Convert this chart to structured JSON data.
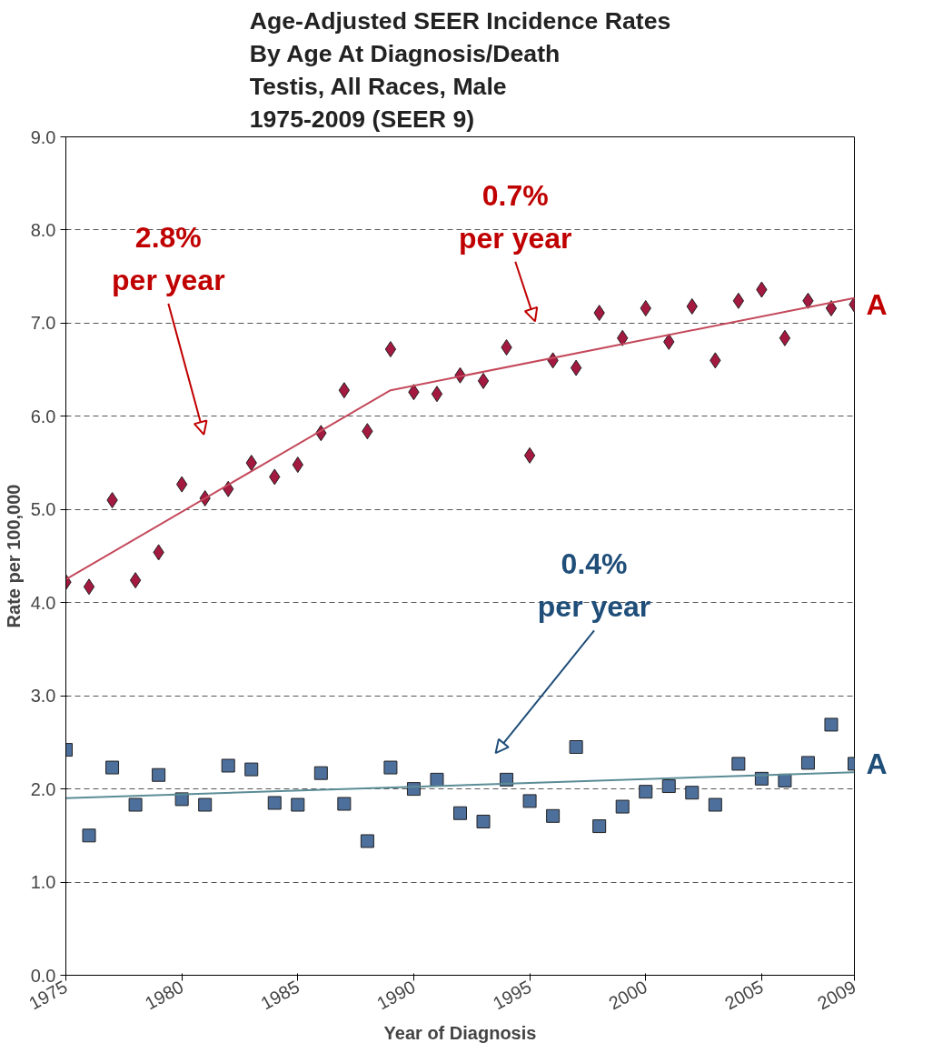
{
  "chart_data": {
    "type": "scatter",
    "title": "Age-Adjusted SEER Incidence Rates\nBy Age At Diagnosis/Death\nTestis, All Races, Male\n1975-2009  (SEER 9)",
    "xlabel": "Year of Diagnosis",
    "ylabel": "Rate per 100,000",
    "xlim": [
      1975,
      2009
    ],
    "xticks": [
      1975,
      1980,
      1985,
      1990,
      1995,
      2000,
      2005,
      2009
    ],
    "ylim": [
      0,
      9
    ],
    "yticks": [
      {
        "value": 0,
        "label": "0.0"
      },
      {
        "value": 1,
        "label": "1.0"
      },
      {
        "value": 2,
        "label": "2.0"
      },
      {
        "value": 3,
        "label": "3.0"
      },
      {
        "value": 4,
        "label": "4.0"
      },
      {
        "value": 5,
        "label": "5.0"
      },
      {
        "value": 6,
        "label": "6.0"
      },
      {
        "value": 7,
        "label": "7.0"
      },
      {
        "value": 8,
        "label": "8.0"
      },
      {
        "value": 9,
        "label": "9.0"
      }
    ],
    "grid": "y",
    "x": [
      1975,
      1976,
      1977,
      1978,
      1979,
      1980,
      1981,
      1982,
      1983,
      1984,
      1985,
      1986,
      1987,
      1988,
      1989,
      1990,
      1991,
      1992,
      1993,
      1994,
      1995,
      1996,
      1997,
      1998,
      1999,
      2000,
      2001,
      2002,
      2003,
      2004,
      2005,
      2006,
      2007,
      2008,
      2009
    ],
    "series": [
      {
        "marker": "diamond",
        "color": "#a3193f",
        "values": [
          4.22,
          4.17,
          5.1,
          4.24,
          4.54,
          5.27,
          5.12,
          5.22,
          5.5,
          5.35,
          5.48,
          5.82,
          6.28,
          5.84,
          6.72,
          6.26,
          6.24,
          6.44,
          6.38,
          6.74,
          5.58,
          6.6,
          6.52,
          7.11,
          6.84,
          7.16,
          6.8,
          7.18,
          6.6,
          7.24,
          7.36,
          6.84,
          7.24,
          7.16,
          7.2
        ]
      },
      {
        "marker": "square",
        "color": "#4d6f9c",
        "values": [
          2.42,
          1.5,
          2.23,
          1.83,
          2.15,
          1.89,
          1.83,
          2.25,
          2.21,
          1.85,
          1.83,
          2.17,
          1.84,
          1.44,
          2.23,
          2.0,
          2.1,
          1.74,
          1.65,
          2.1,
          1.87,
          1.71,
          2.45,
          1.6,
          1.81,
          1.97,
          2.03,
          1.96,
          1.83,
          2.27,
          2.11,
          2.09,
          2.28,
          2.69,
          2.27
        ]
      },
      {
        "type": "line",
        "color": "#c4495c",
        "x": [
          1975,
          1989,
          2009
        ],
        "values": [
          4.25,
          6.28,
          7.27
        ]
      },
      {
        "type": "line",
        "color": "#5b8c96",
        "x": [
          1975,
          2009
        ],
        "values": [
          1.9,
          2.18
        ]
      }
    ],
    "annotations": [
      "2.8%\nper year",
      "0.7%\nper year",
      "0.4%\nper year",
      "A",
      "A"
    ]
  }
}
